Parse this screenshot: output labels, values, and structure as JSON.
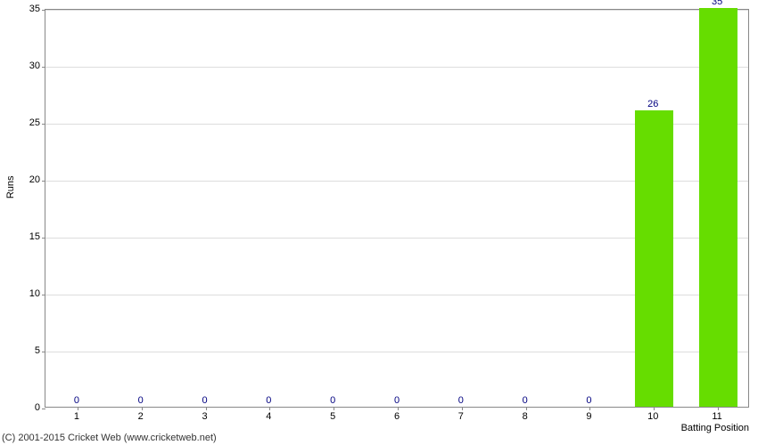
{
  "chart": {
    "type": "bar",
    "categories": [
      "1",
      "2",
      "3",
      "4",
      "5",
      "6",
      "7",
      "8",
      "9",
      "10",
      "11"
    ],
    "values": [
      0,
      0,
      0,
      0,
      0,
      0,
      0,
      0,
      0,
      26,
      35
    ],
    "bar_color": "#66dd00",
    "label_color": "#000080",
    "background_color": "#ffffff",
    "grid_color": "#dddddd",
    "axis_color": "#888888",
    "text_color": "#000000",
    "ylabel": "Runs",
    "xlabel": "Batting Position",
    "ylim_min": 0,
    "ylim_max": 35,
    "ytick_step": 5,
    "bar_width": 0.6,
    "label_fontsize": 11
  },
  "copyright": "(C) 2001-2015 Cricket Web (www.cricketweb.net)"
}
